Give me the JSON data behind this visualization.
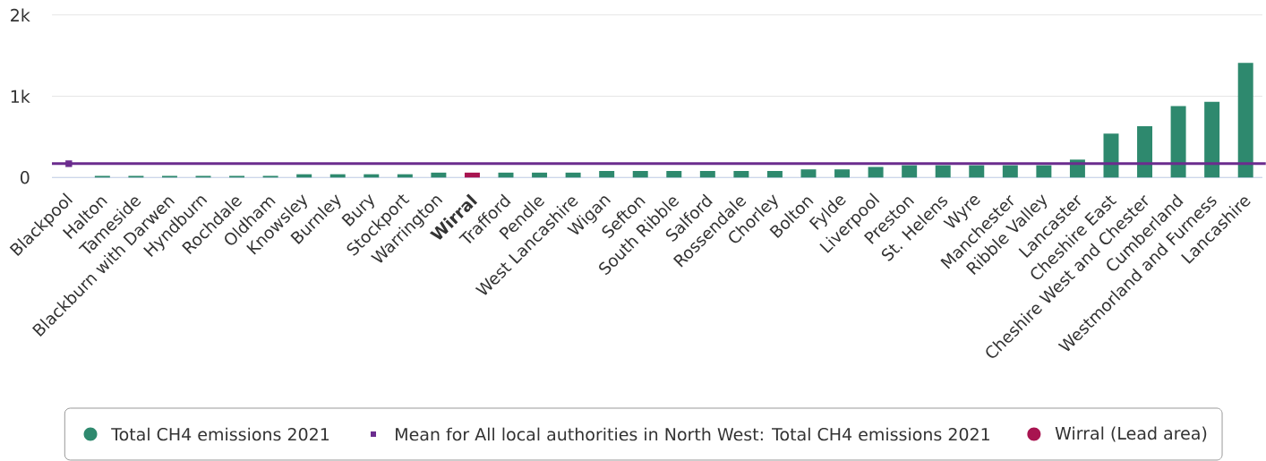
{
  "chart_data": {
    "type": "bar",
    "categories": [
      "Blackpool",
      "Halton",
      "Tameside",
      "Blackburn with Darwen",
      "Hyndburn",
      "Rochdale",
      "Oldham",
      "Knowsley",
      "Burnley",
      "Bury",
      "Stockport",
      "Warrington",
      "Wirral",
      "Trafford",
      "Pendle",
      "West Lancashire",
      "Wigan",
      "Sefton",
      "South Ribble",
      "Salford",
      "Rossendale",
      "Chorley",
      "Bolton",
      "Fylde",
      "Liverpool",
      "Preston",
      "St. Helens",
      "Wyre",
      "Manchester",
      "Ribble Valley",
      "Lancaster",
      "Cheshire East",
      "Cheshire West and Chester",
      "Cumberland",
      "Westmorland and Furness",
      "Lancashire"
    ],
    "series": [
      {
        "name": "Total CH4 emissions 2021",
        "color": "#2e896e",
        "values": [
          null,
          20,
          20,
          20,
          20,
          20,
          20,
          40,
          40,
          40,
          40,
          60,
          null,
          60,
          60,
          60,
          80,
          80,
          80,
          80,
          80,
          80,
          100,
          100,
          130,
          150,
          150,
          150,
          150,
          150,
          220,
          540,
          630,
          880,
          930,
          1410
        ]
      },
      {
        "name": "Mean for All local authorities in North West: Total CH4 emissions 2021",
        "type": "scatter",
        "color": "#6b2c8e",
        "values": [
          170,
          null,
          null,
          null,
          null,
          null,
          null,
          null,
          null,
          null,
          null,
          null,
          null,
          null,
          null,
          null,
          null,
          null,
          null,
          null,
          null,
          null,
          null,
          null,
          null,
          null,
          null,
          null,
          null,
          null,
          null,
          null,
          null,
          null,
          null,
          null
        ]
      },
      {
        "name": "Wirral (Lead area)",
        "color": "#a81450",
        "values": [
          null,
          null,
          null,
          null,
          null,
          null,
          null,
          null,
          null,
          null,
          null,
          null,
          60,
          null,
          null,
          null,
          null,
          null,
          null,
          null,
          null,
          null,
          null,
          null,
          null,
          null,
          null,
          null,
          null,
          null,
          null,
          null,
          null,
          null,
          null,
          null
        ]
      }
    ],
    "stacked": true,
    "marker": "square",
    "ylim": [
      0,
      2000
    ],
    "yticks": [
      0,
      {
        "value": 1000,
        "label": "1k"
      },
      {
        "value": 2000,
        "label": "2k"
      }
    ],
    "grid": "y",
    "legend": "bottom",
    "ref_lines": [
      {
        "axis": "y",
        "value": 170,
        "color": "#6b2c8e"
      }
    ]
  }
}
